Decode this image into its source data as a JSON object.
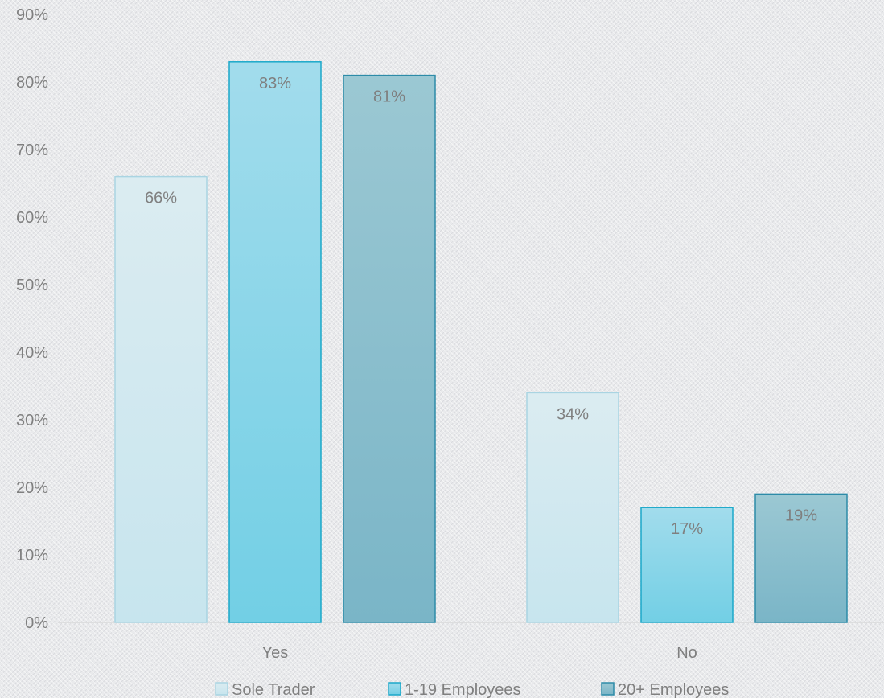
{
  "chart_data": {
    "type": "bar",
    "categories": [
      "Yes",
      "No"
    ],
    "series": [
      {
        "name": "Sole Trader",
        "values": [
          66,
          34
        ],
        "labels": [
          "66%",
          "34%"
        ]
      },
      {
        "name": "1-19 Employees",
        "values": [
          83,
          17
        ],
        "labels": [
          "83%",
          "17%"
        ]
      },
      {
        "name": "20+ Employees",
        "values": [
          81,
          19
        ],
        "labels": [
          "81%",
          "19%"
        ]
      }
    ],
    "ylim": [
      0,
      90
    ],
    "yticks": [
      "0%",
      "10%",
      "20%",
      "30%",
      "40%",
      "50%",
      "60%",
      "70%",
      "80%",
      "90%"
    ],
    "grid": false,
    "legend": "bottom-center",
    "colors": {
      "Sole Trader": {
        "top": "#dbecf1",
        "bottom": "#c7e5ee",
        "stroke": "#a9d4e2"
      },
      "1-19 Employees": {
        "top": "#a2dcec",
        "bottom": "#72cfe5",
        "stroke": "#1ba8c9"
      },
      "20+ Employees": {
        "top": "#9bc8d3",
        "bottom": "#7ab5c7",
        "stroke": "#2d8ba8"
      }
    }
  }
}
